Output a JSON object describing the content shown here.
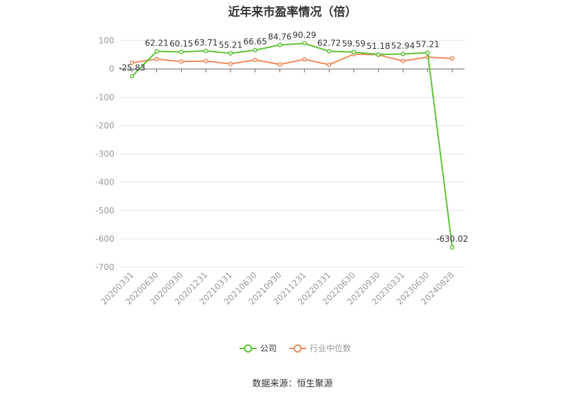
{
  "title": "近年来市盈率情况（倍）",
  "source": "数据来源：恒生聚源",
  "colors": {
    "company": "#5dc233",
    "industry": "#f08a5a",
    "grid": "#e3e6ee",
    "axis": "#666666",
    "label": "#999999"
  },
  "chart_data": {
    "type": "line",
    "categories": [
      "20200331",
      "20200630",
      "20200930",
      "20201231",
      "20210331",
      "20210630",
      "20210930",
      "20211231",
      "20220331",
      "20220630",
      "20220930",
      "20230331",
      "20230630",
      "20240828"
    ],
    "ylim": [
      -700,
      100
    ],
    "yticks": [
      100,
      0,
      -100,
      -200,
      -300,
      -400,
      -500,
      -600,
      -700
    ],
    "grid": true,
    "legend_position": "bottom-center",
    "series": [
      {
        "name": "公司",
        "color": "#5dc233",
        "values": [
          -25.83,
          62.21,
          60.15,
          63.71,
          55.21,
          66.65,
          84.76,
          90.29,
          62.72,
          59.59,
          51.18,
          52.94,
          57.21,
          -630.02
        ],
        "data_labels": [
          "-25.83",
          "62.21",
          "60.15",
          "63.71",
          "55.21",
          "66.65",
          "84.76",
          "90.29",
          "62.72",
          "59.59",
          "51.18",
          "52.94",
          "57.21",
          "-630.02"
        ]
      },
      {
        "name": "行业中位数",
        "color": "#f08a5a",
        "values": [
          22,
          35,
          26,
          28,
          18,
          32,
          16,
          34,
          15,
          52,
          50,
          28,
          42,
          37
        ]
      }
    ]
  }
}
